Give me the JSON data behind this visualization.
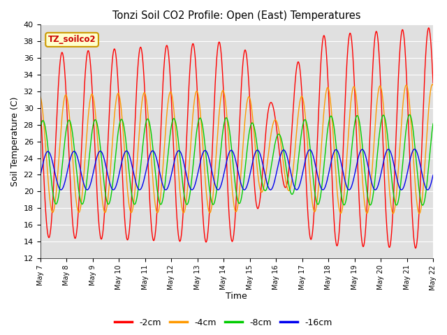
{
  "title": "Tonzi Soil CO2 Profile: Open (East) Temperatures",
  "xlabel": "Time",
  "ylabel": "Soil Temperature (C)",
  "ylim": [
    12,
    40
  ],
  "yticks": [
    12,
    14,
    16,
    18,
    20,
    22,
    24,
    26,
    28,
    30,
    32,
    34,
    36,
    38,
    40
  ],
  "plot_bg_color": "#e0e0e0",
  "fig_bg_color": "#ffffff",
  "legend_label": "TZ_soilco2",
  "series_labels": [
    "-2cm",
    "-4cm",
    "-8cm",
    "-16cm"
  ],
  "series_colors": [
    "#ff0000",
    "#ff9900",
    "#00cc00",
    "#0000ee"
  ],
  "n_days": 15,
  "start_day": 7,
  "end_day": 22,
  "points_per_day": 96,
  "tick_days": [
    7,
    8,
    9,
    10,
    11,
    12,
    13,
    14,
    15,
    16,
    17,
    18,
    19,
    20,
    21,
    22
  ]
}
